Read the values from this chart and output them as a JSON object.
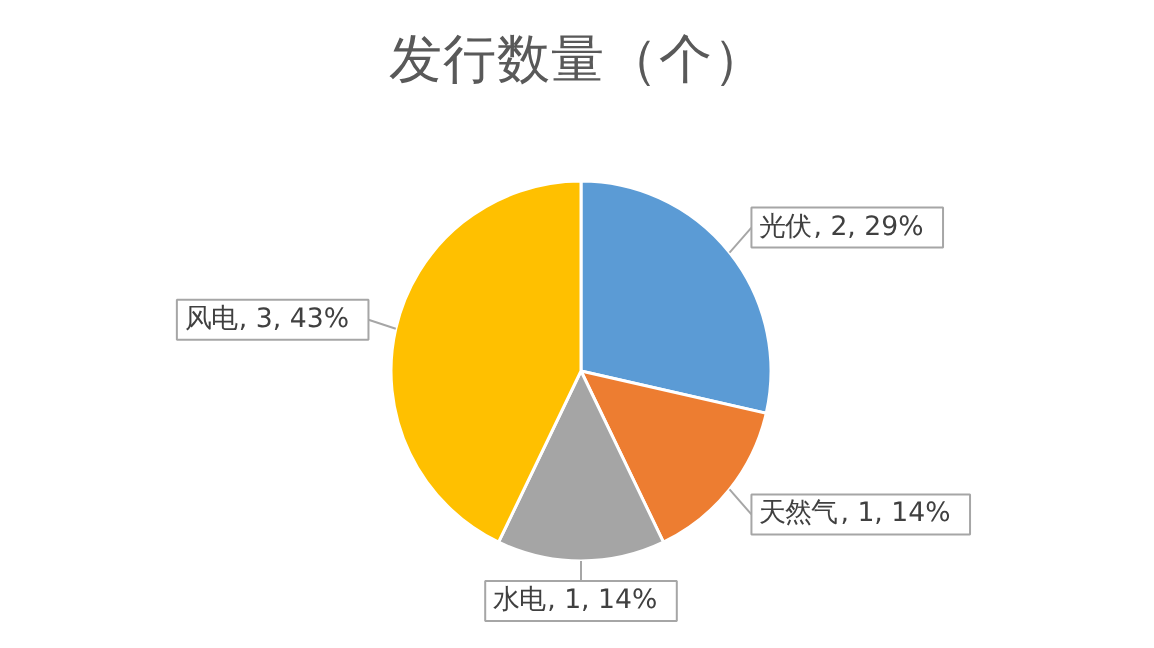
{
  "chart_data": {
    "type": "pie",
    "title": "发行数量（个）",
    "categories": [
      "光伏",
      "天然气",
      "水电",
      "风电"
    ],
    "values": [
      2,
      1,
      1,
      3
    ],
    "colors": [
      "#5b9bd5",
      "#ed7d31",
      "#a5a5a5",
      "#ffc000"
    ],
    "value_labels": [
      ", 2, 29%",
      ", 1, 14%",
      ", 1, 14%",
      ", 3, 43%"
    ]
  }
}
